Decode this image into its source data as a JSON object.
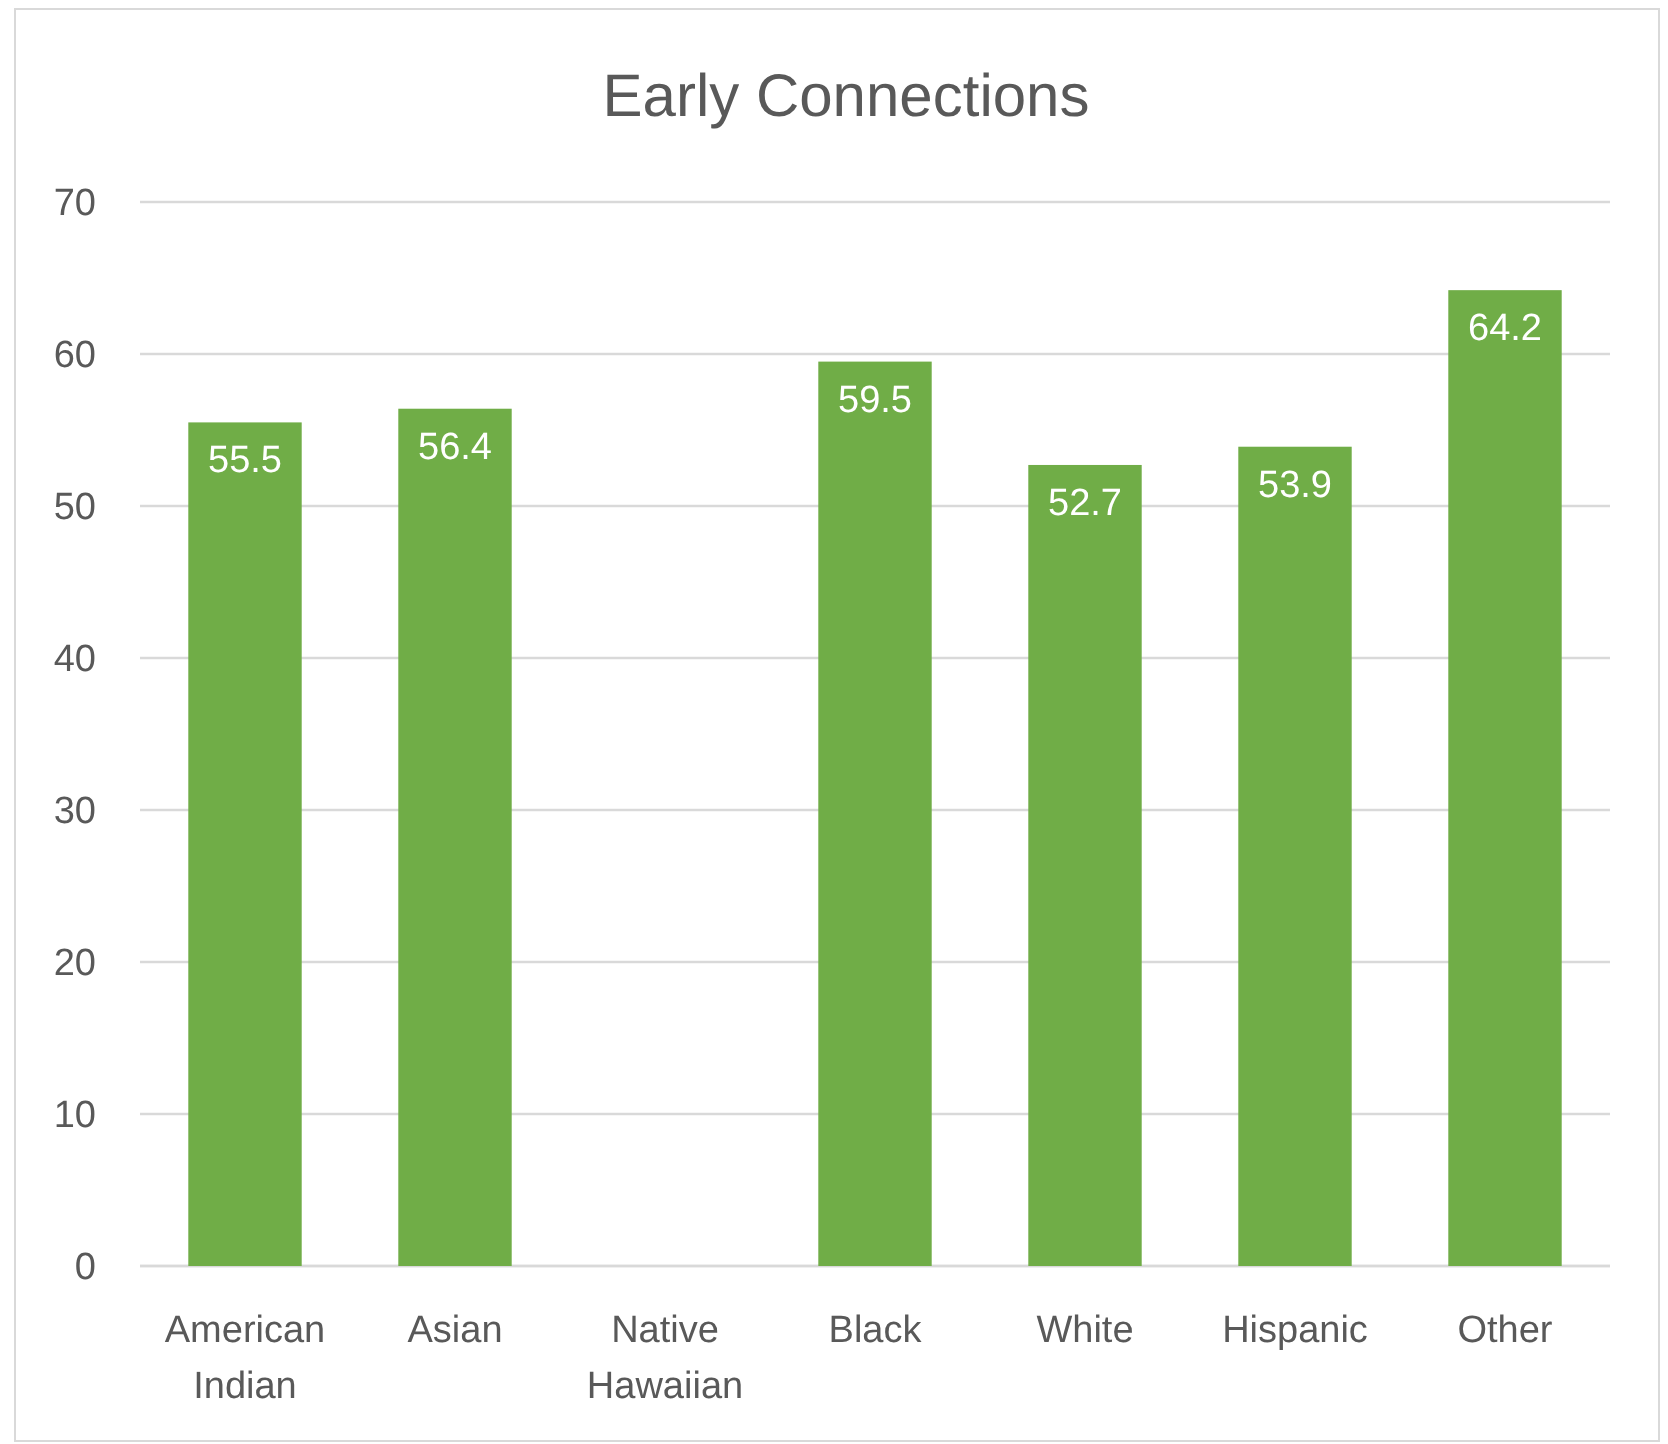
{
  "chart_data": {
    "type": "bar",
    "title": "Early Connections",
    "categories": [
      "American Indian",
      "Asian",
      "Native Hawaiian",
      "Black",
      "White",
      "Hispanic",
      "Other"
    ],
    "values": [
      55.5,
      56.4,
      null,
      59.5,
      52.7,
      53.9,
      64.2
    ],
    "color": "#70ad47",
    "ylim": [
      0,
      70
    ],
    "yticks": [
      0,
      10,
      20,
      30,
      40,
      50,
      60,
      70
    ],
    "grid": "y",
    "data_labels": true
  }
}
